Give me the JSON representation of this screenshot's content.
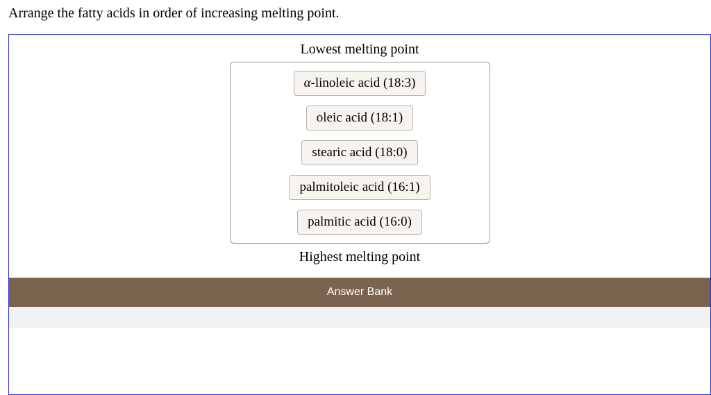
{
  "question": {
    "prompt": "Arrange the fatty acids in order of increasing melting point."
  },
  "labels": {
    "top": "Lowest melting point",
    "bottom": "Highest melting point",
    "answerBank": "Answer Bank"
  },
  "tiles": {
    "0": "α-linoleic acid (18:3)",
    "1": "oleic acid (18:1)",
    "2": "stearic acid (18:0)",
    "3": "palmitoleic acid (16:1)",
    "4": "palmitic acid (16:0)"
  },
  "style": {
    "panel_border_color": "#2b2bd8",
    "tile_bg": "#f7f4f0",
    "tile_border": "#b8b2ab",
    "bank_bar_bg": "#7a644f",
    "bank_bar_text": "#ffffff",
    "bank_body_bg": "#f2f2f2",
    "dropzone_border": "#999999"
  }
}
